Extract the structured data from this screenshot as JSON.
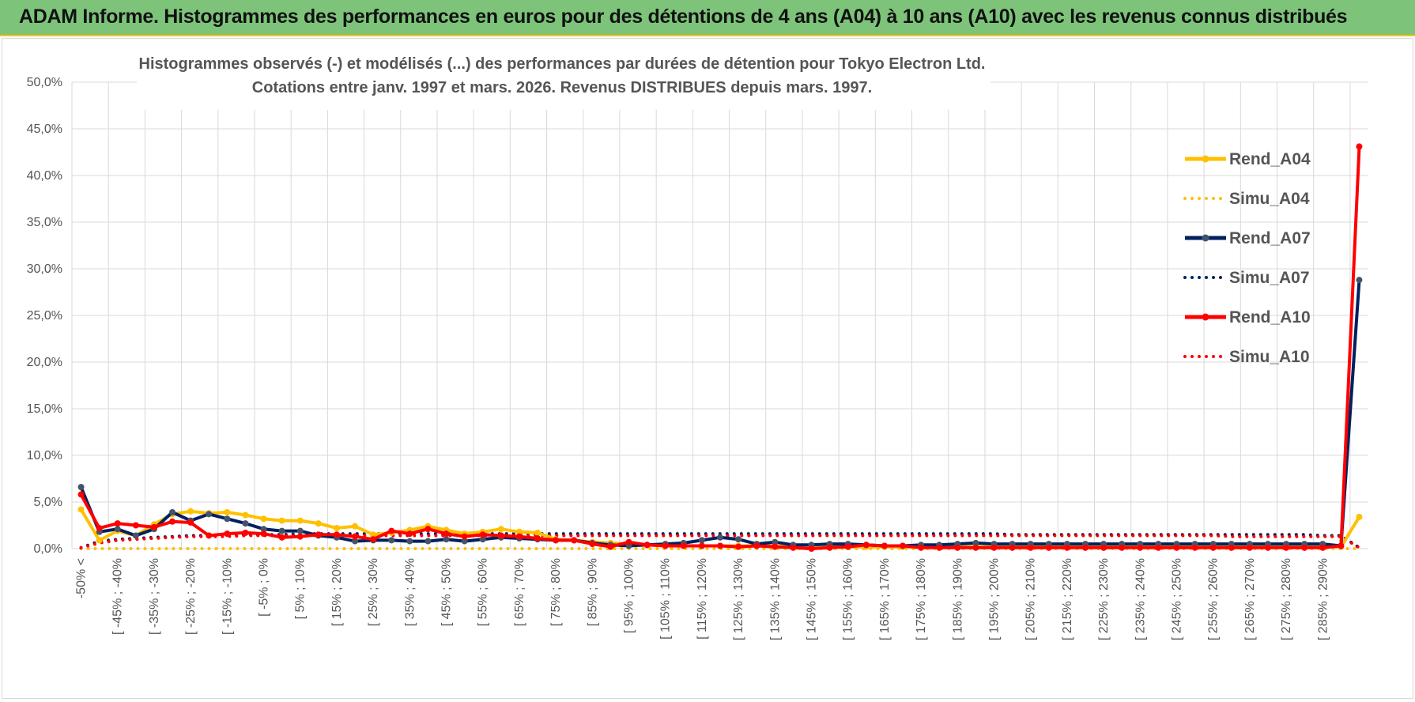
{
  "header": {
    "title": "ADAM Informe. Histogrammes des performances en euros pour des détentions de 4 ans (A04) à 10 ans (A10) avec les revenus connus distribués"
  },
  "colors": {
    "header_bg": "#7dc47a",
    "accent": "#f5c400",
    "A04": "#ffc000",
    "A07": "#002060",
    "A10": "#ff0000"
  },
  "chart_data": {
    "type": "line",
    "title": "Histogrammes observés (-) et modélisés (...) des performances par durées de détention pour Tokyo Electron Ltd.",
    "subtitle": "Cotations entre janv. 1997 et mars. 2026.  Revenus DISTRIBUES depuis mars. 1997.",
    "xlabel": "",
    "ylabel": "",
    "ylim": [
      0,
      50
    ],
    "yticks": [
      "0,0%",
      "5,0%",
      "10,0%",
      "15,0%",
      "20,0%",
      "25,0%",
      "30,0%",
      "35,0%",
      "40,0%",
      "45,0%",
      "50,0%"
    ],
    "grid": true,
    "legend_position": "right",
    "x_tick_labels": [
      "-50% <",
      "[ -45% ; -40%",
      "[ -35% ; -30%",
      "[ -25% ; -20%",
      "[ -15% ; -10%",
      "[ -5% ; 0%",
      "[ 5% ; 10%",
      "[ 15% ; 20%",
      "[ 25% ; 30%",
      "[ 35% ; 40%",
      "[ 45% ; 50%",
      "[ 55% ; 60%",
      "[ 65% ; 70%",
      "[ 75% ; 80%",
      "[ 85% ; 90%",
      "[ 95% ; 100%",
      "[ 105% ; 110%",
      "[ 115% ; 120%",
      "[ 125% ; 130%",
      "[ 135% ; 140%",
      "[ 145% ; 150%",
      "[ 155% ; 160%",
      "[ 165% ; 170%",
      "[ 175% ; 180%",
      "[ 185% ; 190%",
      "[ 195% ; 200%",
      "[ 205% ; 210%",
      "[ 215% ; 220%",
      "[ 225% ; 230%",
      "[ 235% ; 240%",
      "[ 245% ; 250%",
      "[ 255% ; 260%",
      "[ 265% ; 270%",
      "[ 275% ; 280%",
      "[ 285% ; 290%"
    ],
    "series": [
      {
        "name": "Rend_A04",
        "style": "solid",
        "color": "#ffc000",
        "values": [
          4.2,
          0.9,
          1.9,
          1.4,
          2.6,
          3.7,
          4.0,
          3.8,
          3.9,
          3.6,
          3.2,
          3.0,
          3.0,
          2.7,
          2.2,
          2.4,
          1.5,
          1.7,
          2.0,
          2.4,
          2.0,
          1.6,
          1.8,
          2.1,
          1.8,
          1.7,
          1.0,
          0.9,
          0.7,
          0.6,
          0.5,
          0.4,
          0.3,
          0.3,
          0.3,
          0.3,
          0.3,
          0.3,
          0.3,
          0.2,
          0.2,
          0.2,
          0.2,
          0.2,
          0.2,
          0.2,
          0.2,
          0.2,
          0.2,
          0.2,
          0.2,
          0.2,
          0.2,
          0.2,
          0.2,
          0.2,
          0.2,
          0.2,
          0.2,
          0.2,
          0.2,
          0.2,
          0.2,
          0.2,
          0.2,
          0.2,
          0.2,
          0.2,
          0.2,
          0.2,
          3.4
        ]
      },
      {
        "name": "Simu_A04",
        "style": "dotted",
        "color": "#ffc000",
        "values": [
          0,
          0,
          0,
          0,
          0,
          0,
          0,
          0,
          0,
          0,
          0,
          0,
          0,
          0,
          0,
          0,
          0,
          0,
          0,
          0,
          0,
          0,
          0,
          0,
          0,
          0,
          0,
          0,
          0,
          0,
          0,
          0,
          0,
          0,
          0,
          0,
          0,
          0,
          0,
          0,
          0,
          0,
          0,
          0,
          0,
          0,
          0,
          0,
          0,
          0,
          0,
          0,
          0,
          0,
          0,
          0,
          0,
          0,
          0,
          0,
          0,
          0,
          0,
          0,
          0,
          0,
          0,
          0,
          0,
          0,
          0
        ]
      },
      {
        "name": "Rend_A07",
        "style": "solid",
        "color": "#002060",
        "values": [
          6.6,
          1.8,
          2.1,
          1.4,
          2.1,
          3.9,
          3.0,
          3.7,
          3.2,
          2.7,
          2.1,
          1.9,
          1.9,
          1.4,
          1.2,
          0.8,
          0.9,
          0.9,
          0.8,
          0.8,
          1.0,
          0.8,
          1.0,
          1.2,
          1.1,
          1.0,
          0.9,
          0.9,
          0.6,
          0.4,
          0.3,
          0.4,
          0.5,
          0.6,
          0.9,
          1.2,
          1.0,
          0.5,
          0.7,
          0.4,
          0.4,
          0.5,
          0.5,
          0.4,
          0.3,
          0.3,
          0.4,
          0.4,
          0.5,
          0.6,
          0.5,
          0.5,
          0.5,
          0.5,
          0.5,
          0.5,
          0.5,
          0.5,
          0.5,
          0.5,
          0.5,
          0.5,
          0.5,
          0.5,
          0.5,
          0.5,
          0.5,
          0.5,
          0.5,
          0.3,
          28.8
        ]
      },
      {
        "name": "Simu_A07",
        "style": "dotted",
        "color": "#002060",
        "values": [
          0.1,
          0.8,
          1.0,
          1.1,
          1.2,
          1.3,
          1.4,
          1.4,
          1.5,
          1.5,
          1.5,
          1.5,
          1.6,
          1.6,
          1.6,
          1.6,
          1.6,
          1.6,
          1.6,
          1.6,
          1.6,
          1.6,
          1.6,
          1.6,
          1.6,
          1.6,
          1.6,
          1.6,
          1.6,
          1.6,
          1.6,
          1.6,
          1.6,
          1.6,
          1.6,
          1.6,
          1.6,
          1.6,
          1.6,
          1.6,
          1.6,
          1.6,
          1.6,
          1.6,
          1.6,
          1.6,
          1.6,
          1.6,
          1.6,
          1.6,
          1.6,
          1.5,
          1.5,
          1.5,
          1.5,
          1.5,
          1.5,
          1.5,
          1.5,
          1.5,
          1.5,
          1.5,
          1.5,
          1.5,
          1.5,
          1.5,
          1.5,
          1.5,
          1.4,
          1.4,
          0.1
        ]
      },
      {
        "name": "Rend_A10",
        "style": "solid",
        "color": "#ff0000",
        "values": [
          5.8,
          2.2,
          2.7,
          2.5,
          2.3,
          2.9,
          2.8,
          1.4,
          1.6,
          1.7,
          1.6,
          1.2,
          1.3,
          1.5,
          1.5,
          1.3,
          1.0,
          1.9,
          1.6,
          2.1,
          1.6,
          1.3,
          1.5,
          1.4,
          1.3,
          1.1,
          0.9,
          0.9,
          0.5,
          0.2,
          0.7,
          0.4,
          0.3,
          0.3,
          0.3,
          0.3,
          0.2,
          0.3,
          0.2,
          0.1,
          0.0,
          0.1,
          0.2,
          0.4,
          0.3,
          0.3,
          0.1,
          0.1,
          0.1,
          0.1,
          0.1,
          0.1,
          0.1,
          0.1,
          0.1,
          0.1,
          0.1,
          0.1,
          0.1,
          0.1,
          0.1,
          0.1,
          0.1,
          0.1,
          0.1,
          0.1,
          0.1,
          0.1,
          0.1,
          0.3,
          43.1
        ]
      },
      {
        "name": "Simu_A10",
        "style": "dotted",
        "color": "#ff0000",
        "values": [
          0.1,
          0.6,
          0.9,
          1.0,
          1.1,
          1.2,
          1.3,
          1.3,
          1.3,
          1.4,
          1.4,
          1.4,
          1.4,
          1.4,
          1.4,
          1.4,
          1.4,
          1.4,
          1.4,
          1.4,
          1.4,
          1.4,
          1.4,
          1.4,
          1.4,
          1.4,
          1.4,
          1.4,
          1.4,
          1.4,
          1.4,
          1.4,
          1.4,
          1.4,
          1.4,
          1.4,
          1.4,
          1.4,
          1.4,
          1.4,
          1.4,
          1.4,
          1.4,
          1.4,
          1.4,
          1.4,
          1.4,
          1.4,
          1.4,
          1.4,
          1.4,
          1.4,
          1.4,
          1.4,
          1.4,
          1.4,
          1.4,
          1.4,
          1.4,
          1.4,
          1.4,
          1.4,
          1.4,
          1.3,
          1.3,
          1.3,
          1.3,
          1.3,
          1.3,
          1.3,
          0.1
        ]
      }
    ]
  }
}
